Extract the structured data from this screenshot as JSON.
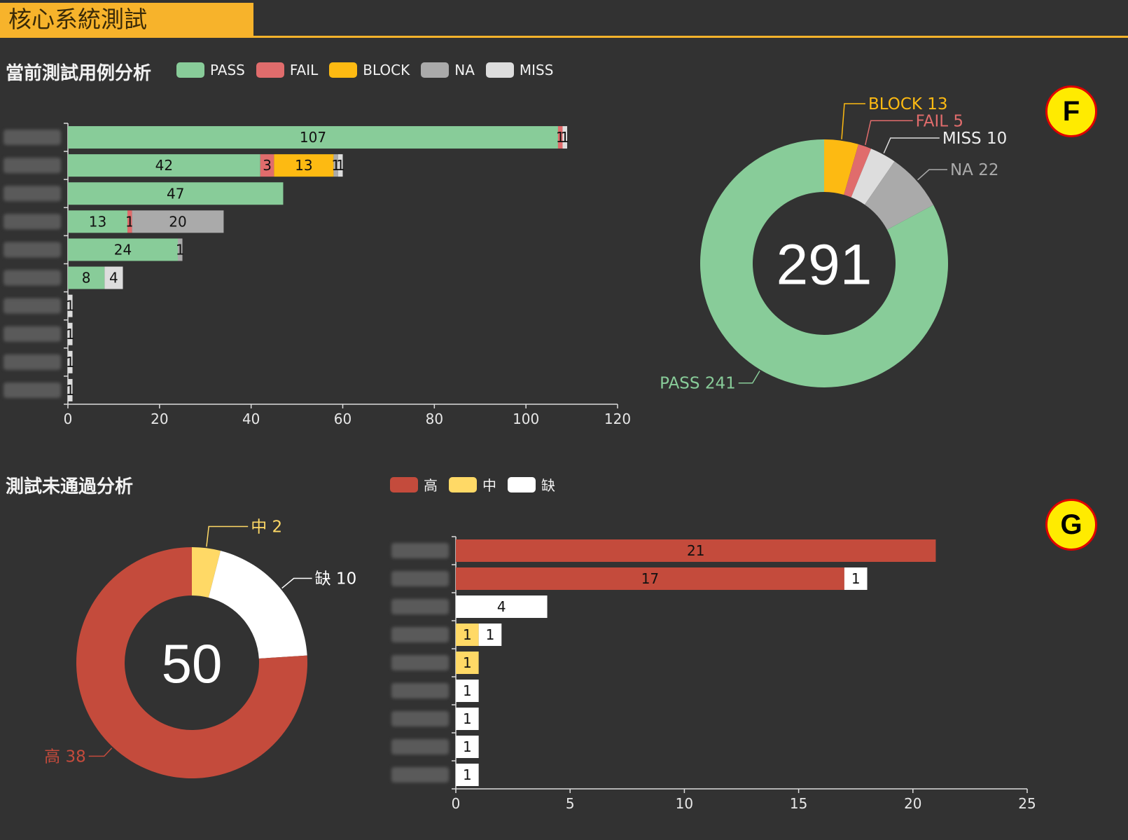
{
  "header": {
    "title": "核心系統測試"
  },
  "badges": {
    "top": "F",
    "bottom": "G"
  },
  "colors": {
    "pass": "#88cc99",
    "fail": "#e06c6c",
    "block": "#fdba12",
    "na": "#aaaaaa",
    "miss": "#dddddd",
    "high": "#c44b3c",
    "mid": "#ffd966",
    "lack": "#ffffff"
  },
  "charts": {
    "case_analysis": {
      "title": "當前測試用例分析",
      "legend": [
        "PASS",
        "FAIL",
        "BLOCK",
        "NA",
        "MISS"
      ],
      "bar": {
        "type": "bar",
        "orientation": "horizontal-stacked",
        "categories": [
          "",
          "",
          "",
          "",
          "",
          "",
          "",
          "",
          "",
          ""
        ],
        "series": [
          {
            "name": "PASS",
            "values": [
              107,
              42,
              47,
              13,
              24,
              8,
              0,
              0,
              0,
              0
            ]
          },
          {
            "name": "FAIL",
            "values": [
              1,
              3,
              0,
              1,
              0,
              0,
              0,
              0,
              0,
              0
            ]
          },
          {
            "name": "BLOCK",
            "values": [
              0,
              13,
              0,
              0,
              0,
              0,
              0,
              0,
              0,
              0
            ]
          },
          {
            "name": "NA",
            "values": [
              0,
              1,
              0,
              20,
              1,
              0,
              0,
              0,
              0,
              0
            ]
          },
          {
            "name": "MISS",
            "values": [
              1,
              1,
              0,
              0,
              0,
              4,
              1,
              1,
              1,
              1
            ]
          }
        ],
        "xlim": [
          0,
          120
        ],
        "xticks": [
          0,
          20,
          40,
          60,
          80,
          100,
          120
        ]
      },
      "donut": {
        "type": "pie",
        "total": "291",
        "slices": [
          {
            "name": "BLOCK",
            "value": 13,
            "label": "BLOCK 13"
          },
          {
            "name": "FAIL",
            "value": 5,
            "label": "FAIL 5"
          },
          {
            "name": "MISS",
            "value": 10,
            "label": "MISS 10"
          },
          {
            "name": "NA",
            "value": 22,
            "label": "NA 22"
          },
          {
            "name": "PASS",
            "value": 241,
            "label": "PASS 241"
          }
        ]
      }
    },
    "fail_analysis": {
      "title": "測試未通過分析",
      "legend": [
        "高",
        "中",
        "缺"
      ],
      "donut": {
        "type": "pie",
        "total": "50",
        "slices": [
          {
            "name": "中",
            "value": 2,
            "label": "中 2"
          },
          {
            "name": "缺",
            "value": 10,
            "label": "缺 10"
          },
          {
            "name": "高",
            "value": 38,
            "label": "高 38"
          }
        ]
      },
      "bar": {
        "type": "bar",
        "orientation": "horizontal-stacked",
        "categories": [
          "",
          "",
          "",
          "",
          "",
          "",
          "",
          "",
          ""
        ],
        "series": [
          {
            "name": "高",
            "values": [
              21,
              17,
              0,
              0,
              0,
              0,
              0,
              0,
              0
            ]
          },
          {
            "name": "中",
            "values": [
              0,
              0,
              0,
              1,
              1,
              0,
              0,
              0,
              0
            ]
          },
          {
            "name": "缺",
            "values": [
              0,
              1,
              4,
              1,
              0,
              1,
              1,
              1,
              1
            ]
          }
        ],
        "xlim": [
          0,
          25
        ],
        "xticks": [
          0,
          5,
          10,
          15,
          20,
          25
        ]
      }
    }
  }
}
